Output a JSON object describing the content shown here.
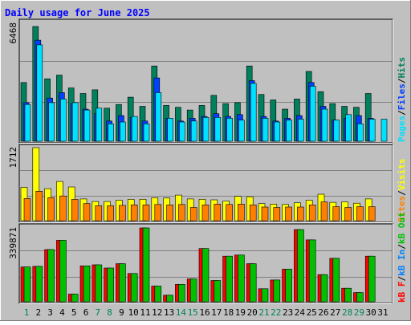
{
  "title": "Daily usage for June 2025",
  "colors": {
    "background": "#C0C0C0",
    "title": "#0000FF",
    "hits": "#00805C",
    "files": "#0040FF",
    "pages": "#00E0FF",
    "visits": "#FFFF00",
    "sites": "#FF8000",
    "kbf": "#FF0000",
    "kbin": "#0080FF",
    "kbout": "#00C000",
    "weekend": "#00805C",
    "weekday": "#000000",
    "slash": "#000000"
  },
  "panels": [
    {
      "max_label": "6468",
      "legend": [
        "Pages",
        "Files",
        "Hits"
      ]
    },
    {
      "max_label": "1712",
      "legend": [
        "Sites",
        "Visits"
      ]
    },
    {
      "max_label": "339871",
      "legend": [
        "kB F",
        "kB In",
        "kB Out"
      ]
    }
  ],
  "chart_data": {
    "type": "bar",
    "title": "Daily usage for June 2025",
    "categories": [
      "1",
      "2",
      "3",
      "4",
      "5",
      "6",
      "7",
      "8",
      "9",
      "10",
      "11",
      "12",
      "13",
      "14",
      "15",
      "16",
      "17",
      "18",
      "19",
      "20",
      "21",
      "22",
      "23",
      "24",
      "25",
      "26",
      "27",
      "28",
      "29",
      "30",
      "31"
    ],
    "weekend_days": [
      1,
      7,
      8,
      14,
      15,
      21,
      22,
      28,
      29
    ],
    "panels": [
      {
        "max": 6468,
        "series": [
          {
            "name": "Hits",
            "values": [
              3200,
              6250,
              3400,
              3600,
              2900,
              2600,
              2800,
              1800,
              2000,
              2400,
              1900,
              4100,
              1950,
              1850,
              1700,
              1950,
              2500,
              2050,
              2100,
              4100,
              2550,
              2250,
              1750,
              2300,
              3800,
              2700,
              2050,
              1900,
              1850,
              2600,
              0
            ]
          },
          {
            "name": "Files",
            "values": [
              2100,
              5500,
              2350,
              2650,
              2050,
              1750,
              1500,
              1100,
              1400,
              1300,
              1100,
              3450,
              1250,
              1100,
              1250,
              1350,
              1500,
              1350,
              1450,
              3300,
              1350,
              1100,
              1250,
              1400,
              3200,
              1900,
              1150,
              1250,
              1400,
              1250,
              0
            ]
          },
          {
            "name": "Pages",
            "values": [
              2000,
              5250,
              2100,
              2300,
              2100,
              1700,
              1800,
              950,
              1050,
              1350,
              950,
              2650,
              1250,
              1050,
              1100,
              1300,
              1300,
              1250,
              1150,
              3150,
              1250,
              1050,
              1150,
              1200,
              3000,
              1750,
              1150,
              1450,
              950,
              1200,
              1200
            ]
          }
        ]
      },
      {
        "max": 1712,
        "series": [
          {
            "name": "Visits",
            "values": [
              780,
              1712,
              750,
              920,
              790,
              510,
              450,
              450,
              480,
              500,
              500,
              540,
              530,
              600,
              510,
              500,
              490,
              460,
              570,
              560,
              400,
              390,
              380,
              420,
              480,
              620,
              430,
              440,
              410,
              510,
              0
            ]
          },
          {
            "name": "Sites",
            "values": [
              520,
              690,
              540,
              580,
              500,
              400,
              350,
              350,
              360,
              370,
              370,
              380,
              370,
              380,
              310,
              370,
              390,
              380,
              390,
              370,
              320,
              310,
              320,
              320,
              370,
              440,
              330,
              310,
              330,
              330,
              0
            ]
          }
        ]
      },
      {
        "max": 339871,
        "series": [
          {
            "name": "kB F",
            "values": [
              160000,
              163000,
              240000,
              283000,
              35000,
              165000,
              170000,
              155000,
              175000,
              130000,
              339871,
              72000,
              30000,
              80000,
              105000,
              245000,
              98000,
              210000,
              215000,
              175000,
              60000,
              100000,
              150000,
              332000,
              285000,
              125000,
              200000,
              62000,
              42000,
              210000,
              0
            ]
          },
          {
            "name": "kB In",
            "values": [
              0,
              0,
              0,
              0,
              0,
              0,
              0,
              0,
              0,
              0,
              0,
              0,
              0,
              0,
              0,
              0,
              0,
              0,
              0,
              0,
              0,
              0,
              0,
              0,
              0,
              0,
              0,
              0,
              0,
              0,
              0
            ]
          },
          {
            "name": "kB Out",
            "values": [
              160000,
              163000,
              240000,
              283000,
              35000,
              165000,
              170000,
              155000,
              175000,
              130000,
              339871,
              72000,
              30000,
              80000,
              105000,
              245000,
              98000,
              210000,
              215000,
              175000,
              60000,
              100000,
              150000,
              332000,
              285000,
              125000,
              200000,
              62000,
              42000,
              210000,
              0
            ]
          }
        ]
      }
    ]
  }
}
